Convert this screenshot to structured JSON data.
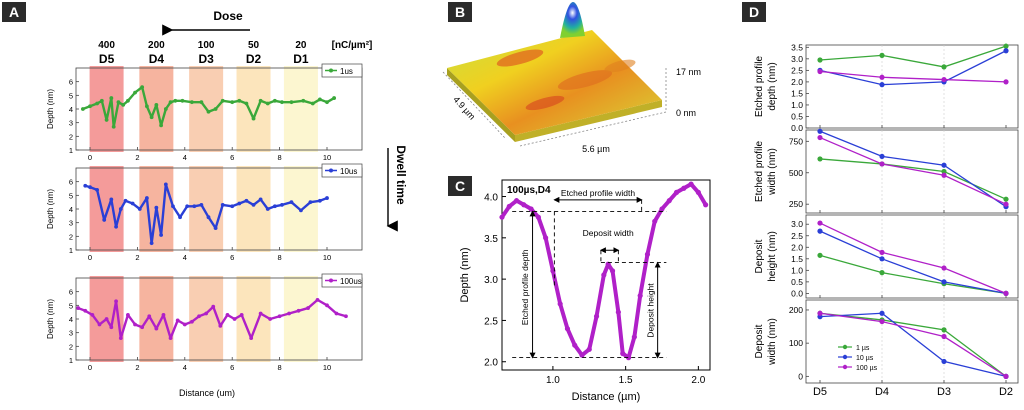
{
  "colors": {
    "tag_bg": "#2b2b2b",
    "green": "#3aa83a",
    "blue": "#2a3fd6",
    "purple": "#b020c8",
    "d5": "#f28a88",
    "d4": "#f5a78e",
    "d3": "#f8c6a4",
    "d2": "#fbe0b0",
    "d1": "#fcf5c8"
  },
  "panel_tags": {
    "a": "A",
    "b": "B",
    "c": "C",
    "d": "D"
  },
  "panel_a": {
    "dose_label": "Dose",
    "unit_label": "[nC/µm²]",
    "doses": [
      "400",
      "200",
      "100",
      "50",
      "20"
    ],
    "dose_names": [
      "D5",
      "D4",
      "D3",
      "D2",
      "D1"
    ],
    "dwell_label": "Dwell time",
    "xlabel": "Distance (um)",
    "ylabel": "Depth (nm)",
    "xticks": [
      "0",
      "2",
      "4",
      "6",
      "8",
      "10"
    ],
    "yticks": [
      "1",
      "2",
      "3",
      "4",
      "5",
      "6"
    ],
    "legends": [
      "1us",
      "10us",
      "100us"
    ]
  },
  "panel_b": {
    "z_top": "17 nm",
    "z_bottom": "0 nm",
    "dim_y": "4.9 µm",
    "dim_x": "5.6 µm"
  },
  "panel_c": {
    "tag_label": "100µs,D4",
    "xlabel": "Distance (µm)",
    "ylabel": "Depth (nm)",
    "etched_width": "Etched profile width",
    "deposit_width": "Deposit width",
    "etched_depth": "Etched profile depth",
    "deposit_height": "Deposit height"
  },
  "chart_data": [
    {
      "type": "line",
      "title": "A",
      "xlabel": "Distance (um)",
      "ylabel": "Depth (nm)",
      "xlim": [
        -0.6,
        11
      ],
      "ylim": [
        1,
        7
      ],
      "series": [
        {
          "name": "1us",
          "x": [
            -0.3,
            0,
            0.3,
            0.5,
            0.7,
            0.9,
            1.0,
            1.2,
            1.4,
            1.6,
            1.9,
            2.2,
            2.4,
            2.6,
            2.8,
            3.0,
            3.2,
            3.4,
            3.6,
            3.9,
            4.3,
            4.7,
            5.0,
            5.3,
            5.6,
            6.0,
            6.3,
            6.6,
            6.9,
            7.2,
            7.5,
            7.8,
            8.1,
            8.5,
            9.0,
            9.4,
            9.7,
            10.0,
            10.3
          ],
          "y": [
            4.0,
            4.2,
            4.4,
            4.6,
            3.2,
            4.8,
            2.7,
            4.5,
            4.3,
            4.6,
            5.2,
            5.6,
            4.2,
            3.4,
            4.3,
            2.8,
            4.0,
            4.5,
            4.6,
            4.6,
            4.5,
            4.5,
            3.8,
            4.0,
            4.6,
            4.5,
            4.6,
            4.4,
            3.3,
            4.6,
            4.4,
            4.6,
            4.5,
            4.5,
            4.6,
            4.4,
            4.7,
            4.5,
            4.8
          ]
        },
        {
          "name": "10us",
          "x": [
            -0.2,
            0,
            0.3,
            0.6,
            0.9,
            1.1,
            1.3,
            1.5,
            1.8,
            2.1,
            2.4,
            2.6,
            2.8,
            3.0,
            3.2,
            3.5,
            3.8,
            4.1,
            4.4,
            4.7,
            5.0,
            5.3,
            5.6,
            6.0,
            6.3,
            6.6,
            6.9,
            7.2,
            7.5,
            7.8,
            8.1,
            8.5,
            8.9,
            9.3,
            9.7,
            10.0
          ],
          "y": [
            5.7,
            5.6,
            5.4,
            3.2,
            4.7,
            2.7,
            4.0,
            4.6,
            4.4,
            4.0,
            4.8,
            1.5,
            4.1,
            2.1,
            5.8,
            4.2,
            3.4,
            4.2,
            4.2,
            4.3,
            3.4,
            2.6,
            4.3,
            4.2,
            4.4,
            4.6,
            4.3,
            4.7,
            4.0,
            4.2,
            4.3,
            4.5,
            3.9,
            4.5,
            4.6,
            4.8
          ]
        },
        {
          "name": "100us",
          "x": [
            -0.5,
            -0.2,
            0.1,
            0.4,
            0.7,
            0.9,
            1.1,
            1.3,
            1.6,
            1.9,
            2.2,
            2.5,
            2.8,
            3.1,
            3.4,
            3.7,
            4.0,
            4.3,
            4.6,
            4.9,
            5.2,
            5.5,
            5.8,
            6.1,
            6.4,
            6.8,
            7.2,
            7.6,
            8.0,
            8.4,
            8.8,
            9.2,
            9.6,
            10.0,
            10.4,
            10.8
          ],
          "y": [
            4.8,
            4.6,
            4.3,
            3.6,
            4.0,
            3.4,
            5.3,
            2.6,
            4.3,
            3.6,
            3.4,
            4.2,
            3.3,
            4.3,
            2.6,
            3.9,
            3.6,
            3.8,
            4.2,
            4.4,
            4.9,
            3.5,
            4.3,
            4.0,
            4.3,
            2.6,
            4.4,
            4.0,
            4.2,
            4.4,
            4.6,
            4.8,
            5.4,
            5.0,
            4.4,
            4.2
          ]
        }
      ]
    },
    {
      "type": "line",
      "title": "C: 100µs,D4",
      "xlabel": "Distance (µm)",
      "ylabel": "Depth (nm)",
      "xlim": [
        0.65,
        2.08
      ],
      "ylim": [
        1.9,
        4.2
      ],
      "xticks": [
        1.0,
        1.5,
        2.0
      ],
      "yticks": [
        2.0,
        2.5,
        3.0,
        3.5,
        4.0
      ],
      "x": [
        0.65,
        0.7,
        0.75,
        0.8,
        0.85,
        0.9,
        0.95,
        1.0,
        1.05,
        1.1,
        1.15,
        1.2,
        1.25,
        1.3,
        1.35,
        1.38,
        1.41,
        1.45,
        1.48,
        1.52,
        1.56,
        1.6,
        1.65,
        1.7,
        1.75,
        1.8,
        1.85,
        1.9,
        1.95,
        2.0,
        2.05
      ],
      "y": [
        3.75,
        3.88,
        3.95,
        3.9,
        3.85,
        3.75,
        3.5,
        3.1,
        2.7,
        2.4,
        2.2,
        2.08,
        2.15,
        2.55,
        3.05,
        3.18,
        3.1,
        2.6,
        2.1,
        2.05,
        2.3,
        2.8,
        3.3,
        3.7,
        3.85,
        3.95,
        4.05,
        4.1,
        4.15,
        4.05,
        3.9
      ]
    },
    {
      "type": "line",
      "title": "D: Etched profile depth (nm)",
      "categories": [
        "D5",
        "D4",
        "D3",
        "D2"
      ],
      "ylim": [
        0,
        3.6
      ],
      "yticks": [
        "0.0",
        "0.5",
        "1.0",
        "1.5",
        "2.0",
        "2.5",
        "3.0",
        "3.5"
      ],
      "series": [
        {
          "name": "1 µs",
          "values": [
            2.95,
            3.15,
            2.65,
            3.55
          ]
        },
        {
          "name": "10 µs",
          "values": [
            2.5,
            1.88,
            2.0,
            3.35
          ]
        },
        {
          "name": "100 µs",
          "values": [
            2.45,
            2.2,
            2.1,
            2.0
          ]
        }
      ]
    },
    {
      "type": "line",
      "title": "D: Etched profile width (nm)",
      "categories": [
        "D5",
        "D4",
        "D3",
        "D2"
      ],
      "ylim": [
        180,
        840
      ],
      "yticks": [
        "250",
        "500",
        "750"
      ],
      "series": [
        {
          "name": "1 µs",
          "values": [
            610,
            570,
            510,
            290
          ]
        },
        {
          "name": "10 µs",
          "values": [
            830,
            630,
            560,
            230
          ]
        },
        {
          "name": "100 µs",
          "values": [
            780,
            570,
            480,
            250
          ]
        }
      ]
    },
    {
      "type": "line",
      "title": "D: Deposit height (nm)",
      "categories": [
        "D5",
        "D4",
        "D3",
        "D2"
      ],
      "ylim": [
        -0.2,
        3.4
      ],
      "yticks": [
        "0.0",
        "0.5",
        "1.0",
        "1.5",
        "2.0",
        "2.5",
        "3.0"
      ],
      "series": [
        {
          "name": "1 µs",
          "values": [
            1.65,
            0.9,
            0.42,
            0.0
          ]
        },
        {
          "name": "10 µs",
          "values": [
            2.7,
            1.5,
            0.5,
            0.0
          ]
        },
        {
          "name": "100 µs",
          "values": [
            3.05,
            1.78,
            1.1,
            0.0
          ]
        }
      ]
    },
    {
      "type": "line",
      "title": "D: Deposit width (nm)",
      "categories": [
        "D5",
        "D4",
        "D3",
        "D2"
      ],
      "ylim": [
        -20,
        230
      ],
      "yticks": [
        "0",
        "100",
        "200"
      ],
      "series": [
        {
          "name": "1 µs",
          "values": [
            190,
            170,
            140,
            0
          ]
        },
        {
          "name": "10 µs",
          "values": [
            180,
            190,
            45,
            0
          ]
        },
        {
          "name": "100 µs",
          "values": [
            190,
            165,
            120,
            0
          ]
        }
      ],
      "legend": "bottom-left"
    }
  ],
  "panel_d": {
    "ylabels": [
      [
        "Etched profile",
        "depth (nm)"
      ],
      [
        "Etched profile",
        "width (nm)"
      ],
      [
        "Deposit",
        "height (nm)"
      ],
      [
        "Deposit",
        "width (nm)"
      ]
    ]
  }
}
